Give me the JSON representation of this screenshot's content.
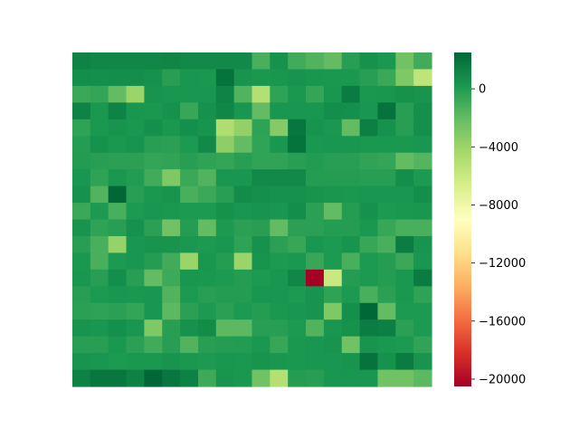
{
  "chart_data": {
    "type": "heatmap",
    "title": "",
    "xlabel": "",
    "ylabel": "",
    "rows": 20,
    "cols": 20,
    "axes_visible": false,
    "colormap": "RdYlGn",
    "vmin": -20500,
    "vmax": 2500,
    "colorbar": {
      "ticks": [
        0,
        -4000,
        -8000,
        -12000,
        -16000,
        -20000
      ],
      "tick_labels": [
        "0",
        "−4000",
        "−8000",
        "−12000",
        "−16000",
        "−20000"
      ]
    },
    "values": [
      [
        1200,
        1000,
        1000,
        1000,
        1000,
        1100,
        900,
        900,
        900,
        900,
        -1200,
        500,
        -1000,
        -1500,
        -2000,
        -200,
        500,
        200,
        -2500,
        -1000
      ],
      [
        700,
        600,
        700,
        700,
        500,
        -200,
        300,
        200,
        2000,
        400,
        200,
        300,
        400,
        300,
        200,
        200,
        -200,
        -800,
        -3000,
        -5500
      ],
      [
        -800,
        -600,
        -2000,
        -4000,
        400,
        300,
        300,
        300,
        1200,
        -1500,
        -5000,
        -400,
        200,
        -600,
        300,
        1600,
        200,
        300,
        500,
        400
      ],
      [
        1200,
        200,
        1200,
        300,
        200,
        500,
        -700,
        500,
        1000,
        300,
        -2000,
        300,
        300,
        300,
        700,
        600,
        300,
        2000,
        -200,
        600
      ],
      [
        -400,
        200,
        400,
        200,
        600,
        200,
        600,
        400,
        -4800,
        -3700,
        -400,
        -3200,
        1800,
        400,
        200,
        -2000,
        1400,
        500,
        -200,
        600
      ],
      [
        -100,
        500,
        200,
        400,
        -200,
        -300,
        100,
        900,
        -3500,
        -2000,
        -500,
        300,
        2000,
        200,
        300,
        300,
        200,
        200,
        200,
        300
      ],
      [
        -50,
        -200,
        -300,
        -300,
        -600,
        -500,
        -200,
        -400,
        -600,
        -200,
        -500,
        -500,
        -200,
        -50,
        -200,
        -200,
        -500,
        -600,
        -2000,
        -1600
      ],
      [
        300,
        -400,
        200,
        -50,
        -1000,
        -3000,
        -800,
        -1500,
        300,
        300,
        900,
        900,
        900,
        -100,
        -100,
        -100,
        -200,
        -200,
        700,
        100
      ],
      [
        500,
        -1500,
        2500,
        -200,
        200,
        400,
        -1200,
        -800,
        -200,
        800,
        600,
        500,
        500,
        400,
        300,
        200,
        300,
        300,
        300,
        700
      ],
      [
        -800,
        100,
        -1200,
        100,
        300,
        200,
        100,
        100,
        500,
        300,
        400,
        300,
        700,
        -300,
        -2000,
        -100,
        500,
        100,
        200,
        300
      ],
      [
        400,
        -400,
        -200,
        500,
        -300,
        -2500,
        -100,
        -2000,
        100,
        -300,
        -200,
        -2000,
        -300,
        -300,
        -100,
        -100,
        200,
        -700,
        -1200,
        -1200
      ],
      [
        -200,
        -1200,
        -3800,
        300,
        400,
        400,
        200,
        100,
        300,
        -400,
        500,
        -300,
        -700,
        300,
        100,
        400,
        -700,
        -1200,
        1500,
        400
      ],
      [
        200,
        -1200,
        100,
        300,
        -100,
        -1000,
        -4000,
        300,
        -100,
        -4000,
        400,
        100,
        200,
        -700,
        100,
        -1200,
        100,
        -100,
        -800,
        300
      ],
      [
        300,
        -200,
        700,
        -200,
        -2000,
        -900,
        300,
        200,
        100,
        -100,
        100,
        300,
        1000,
        -20500,
        -6000,
        -100,
        100,
        -100,
        200,
        1600
      ],
      [
        -200,
        100,
        300,
        200,
        300,
        -1500,
        100,
        -200,
        -100,
        -100,
        300,
        300,
        100,
        400,
        -400,
        100,
        -1200,
        -300,
        200,
        -400
      ],
      [
        -300,
        -400,
        -300,
        -600,
        300,
        -1800,
        -300,
        100,
        -300,
        100,
        -100,
        200,
        300,
        400,
        -3000,
        600,
        2500,
        -2000,
        100,
        100
      ],
      [
        400,
        300,
        600,
        300,
        -3000,
        -200,
        500,
        800,
        -1800,
        -1800,
        -200,
        -200,
        100,
        -1500,
        300,
        500,
        1500,
        1400,
        -300,
        100
      ],
      [
        -200,
        -200,
        200,
        -300,
        -1000,
        -200,
        -1500,
        -200,
        -100,
        -50,
        200,
        -700,
        200,
        300,
        400,
        -2500,
        400,
        200,
        100,
        -500
      ],
      [
        400,
        300,
        100,
        200,
        200,
        400,
        200,
        100,
        300,
        200,
        400,
        300,
        200,
        300,
        300,
        400,
        2000,
        500,
        1600,
        400
      ],
      [
        1300,
        1800,
        1800,
        1300,
        2500,
        1800,
        1300,
        -900,
        400,
        200,
        -2500,
        -5000,
        -100,
        -200,
        300,
        300,
        300,
        -2500,
        -2500,
        -1800
      ]
    ]
  }
}
